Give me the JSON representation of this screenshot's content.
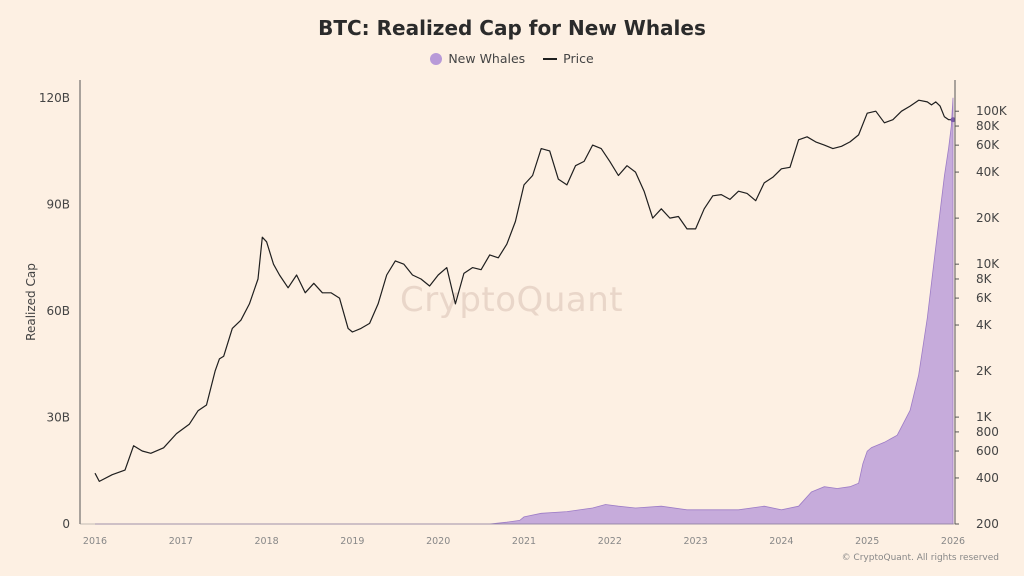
{
  "chart_data": {
    "type": "area",
    "title": "BTC: Realized Cap for New Whales",
    "ylabel": "Realized Cap",
    "ylim": [
      0,
      125000000000
    ],
    "y_ticks": [
      {
        "value": 0,
        "label": "0"
      },
      {
        "value": 30000000000,
        "label": "30B"
      },
      {
        "value": 60000000000,
        "label": "60B"
      },
      {
        "value": 90000000000,
        "label": "90B"
      },
      {
        "value": 120000000000,
        "label": "120B"
      }
    ],
    "y2_scale": "log",
    "y2lim": [
      200,
      160000
    ],
    "y2_ticks": [
      {
        "value": 200,
        "label": "200"
      },
      {
        "value": 400,
        "label": "400"
      },
      {
        "value": 600,
        "label": "600"
      },
      {
        "value": 800,
        "label": "800"
      },
      {
        "value": 1000,
        "label": "1K"
      },
      {
        "value": 2000,
        "label": "2K"
      },
      {
        "value": 4000,
        "label": "4K"
      },
      {
        "value": 6000,
        "label": "6K"
      },
      {
        "value": 8000,
        "label": "8K"
      },
      {
        "value": 10000,
        "label": "10K"
      },
      {
        "value": 20000,
        "label": "20K"
      },
      {
        "value": 40000,
        "label": "40K"
      },
      {
        "value": 60000,
        "label": "60K"
      },
      {
        "value": 80000,
        "label": "80K"
      },
      {
        "value": 100000,
        "label": "100K"
      }
    ],
    "x_ticks": [
      "2016",
      "2017",
      "2018",
      "2019",
      "2020",
      "2021",
      "2022",
      "2023",
      "2024",
      "2025",
      "2026"
    ],
    "xlim": [
      2016.0,
      2026.0
    ],
    "legend_position": "top-center",
    "grid": false,
    "series": [
      {
        "name": "New Whales",
        "type": "area",
        "axis": "left",
        "color": "#b89ad8",
        "x": [
          2016.0,
          2020.6,
          2020.8,
          2020.95,
          2021.0,
          2021.2,
          2021.5,
          2021.8,
          2021.95,
          2022.1,
          2022.3,
          2022.6,
          2022.9,
          2023.2,
          2023.5,
          2023.8,
          2024.0,
          2024.2,
          2024.35,
          2024.5,
          2024.65,
          2024.8,
          2024.9,
          2024.95,
          2025.0,
          2025.05,
          2025.2,
          2025.35,
          2025.5,
          2025.6,
          2025.7,
          2025.8,
          2025.85,
          2025.9,
          2025.95,
          2025.98,
          2026.0
        ],
        "values": [
          0,
          0,
          500000000,
          1000000000,
          2000000000,
          3000000000,
          3500000000,
          4500000000,
          5500000000,
          5000000000,
          4500000000,
          5000000000,
          4000000000,
          4000000000,
          4000000000,
          5000000000,
          4000000000,
          5000000000,
          9000000000,
          10500000000,
          10000000000,
          10500000000,
          11500000000,
          17000000000,
          20500000000,
          21500000000,
          23000000000,
          25000000000,
          32000000000,
          42000000000,
          58000000000,
          78000000000,
          88000000000,
          98000000000,
          106000000000,
          112000000000,
          120000000000
        ]
      },
      {
        "name": "Price",
        "type": "line",
        "axis": "right",
        "color": "#1f1f1f",
        "x": [
          2016.0,
          2016.05,
          2016.2,
          2016.35,
          2016.45,
          2016.55,
          2016.65,
          2016.8,
          2016.95,
          2017.1,
          2017.2,
          2017.3,
          2017.4,
          2017.45,
          2017.5,
          2017.6,
          2017.7,
          2017.8,
          2017.9,
          2017.95,
          2018.0,
          2018.08,
          2018.15,
          2018.25,
          2018.35,
          2018.45,
          2018.55,
          2018.65,
          2018.75,
          2018.85,
          2018.95,
          2019.0,
          2019.1,
          2019.2,
          2019.3,
          2019.4,
          2019.5,
          2019.6,
          2019.7,
          2019.8,
          2019.9,
          2020.0,
          2020.1,
          2020.2,
          2020.3,
          2020.4,
          2020.5,
          2020.6,
          2020.7,
          2020.8,
          2020.9,
          2021.0,
          2021.1,
          2021.2,
          2021.3,
          2021.4,
          2021.5,
          2021.6,
          2021.7,
          2021.8,
          2021.9,
          2022.0,
          2022.1,
          2022.2,
          2022.3,
          2022.4,
          2022.5,
          2022.6,
          2022.7,
          2022.8,
          2022.9,
          2023.0,
          2023.1,
          2023.2,
          2023.3,
          2023.4,
          2023.5,
          2023.6,
          2023.7,
          2023.8,
          2023.9,
          2024.0,
          2024.1,
          2024.2,
          2024.3,
          2024.4,
          2024.5,
          2024.6,
          2024.7,
          2024.8,
          2024.9,
          2025.0,
          2025.1,
          2025.2,
          2025.3,
          2025.4,
          2025.5,
          2025.6,
          2025.7,
          2025.75,
          2025.8,
          2025.85,
          2025.9,
          2025.95,
          2026.0
        ],
        "values": [
          430,
          380,
          420,
          450,
          650,
          600,
          580,
          630,
          780,
          900,
          1100,
          1200,
          2000,
          2400,
          2500,
          3800,
          4300,
          5500,
          8000,
          15000,
          14000,
          10000,
          8500,
          7000,
          8500,
          6500,
          7500,
          6500,
          6500,
          6000,
          3800,
          3600,
          3800,
          4100,
          5500,
          8500,
          10500,
          10000,
          8500,
          8000,
          7200,
          8500,
          9500,
          5500,
          8700,
          9500,
          9200,
          11500,
          11000,
          13500,
          19000,
          33000,
          38000,
          57000,
          55000,
          36000,
          33000,
          44000,
          47000,
          60000,
          57000,
          47000,
          38000,
          44000,
          40000,
          30000,
          20000,
          23000,
          20000,
          20500,
          17000,
          17000,
          23000,
          28000,
          28500,
          26500,
          30000,
          29000,
          26000,
          34000,
          37000,
          42000,
          43000,
          65000,
          68000,
          63000,
          60000,
          57000,
          59000,
          63000,
          70000,
          97000,
          100000,
          84000,
          88000,
          100000,
          108000,
          118000,
          115000,
          110000,
          115000,
          108000,
          92000,
          88000,
          88000
        ]
      }
    ]
  },
  "watermark": "CryptoQuant",
  "copyright": "© CryptoQuant. All rights reserved"
}
